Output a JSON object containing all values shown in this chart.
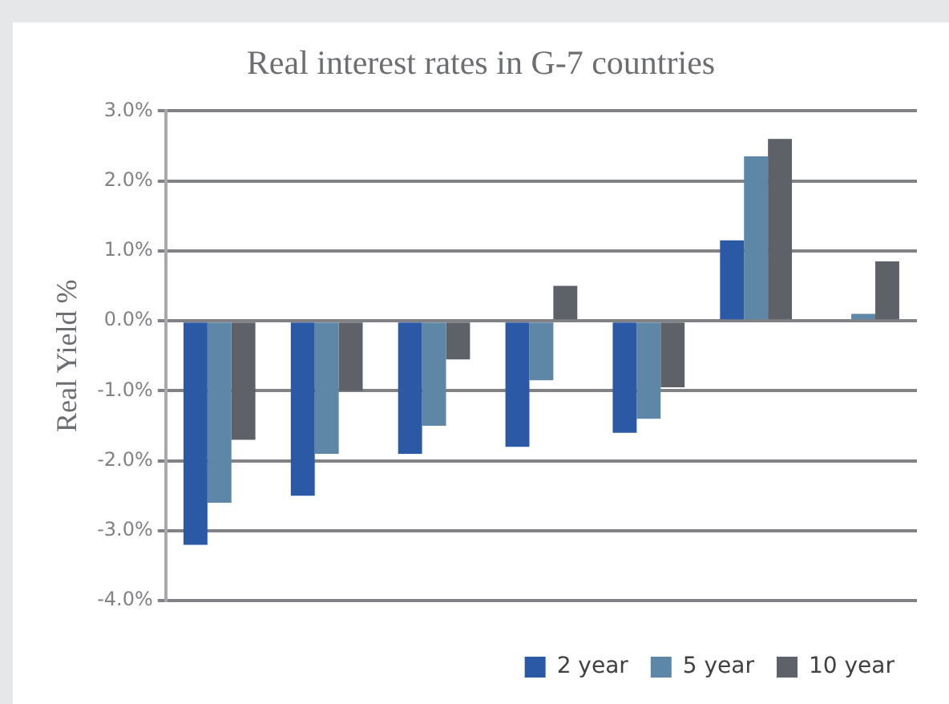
{
  "chart_data": {
    "type": "bar",
    "title": "Real interest rates in G-7 countries",
    "ylabel": "Real Yield %",
    "categories": [
      null,
      null,
      null,
      null,
      null,
      null,
      null
    ],
    "series": [
      {
        "name": "2 year",
        "color": "#2b59a6",
        "values": [
          -3.2,
          -2.5,
          -1.9,
          -1.8,
          -1.6,
          1.15,
          null
        ]
      },
      {
        "name": "5 year",
        "color": "#5e86a6",
        "values": [
          -2.6,
          -1.9,
          -1.5,
          -0.85,
          -1.4,
          2.35,
          0.1
        ]
      },
      {
        "name": "10 year",
        "color": "#5f6168",
        "values": [
          -1.7,
          -1.0,
          -0.55,
          0.5,
          -0.95,
          2.6,
          0.85
        ]
      }
    ],
    "ylim": [
      -4,
      3
    ],
    "yticks": [
      {
        "value": -4,
        "label": "-4.0%"
      },
      {
        "value": -3,
        "label": "-3.0%"
      },
      {
        "value": -2,
        "label": "-2.0%"
      },
      {
        "value": -1,
        "label": "-1.0%"
      },
      {
        "value": 0,
        "label": "0.0%"
      },
      {
        "value": 1,
        "label": "1.0%"
      },
      {
        "value": 2,
        "label": "2.0%"
      },
      {
        "value": 3,
        "label": "3.0%"
      }
    ],
    "grid": "y",
    "legend": "bottom right"
  }
}
